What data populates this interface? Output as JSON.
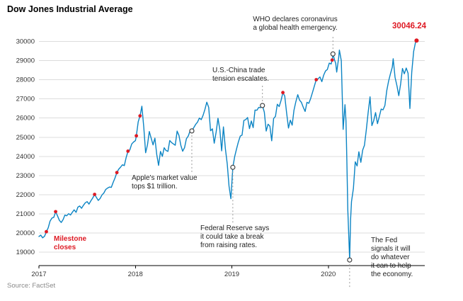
{
  "chart_data": {
    "type": "line",
    "title": "Dow Jones Industrial Average",
    "source": "Source: FactSet",
    "xlabel": "",
    "ylabel": "",
    "x_range": [
      2017,
      2021
    ],
    "y_range": [
      18300,
      30500
    ],
    "x_ticks": [
      2017,
      2018,
      2019,
      2020
    ],
    "y_ticks": [
      19000,
      20000,
      21000,
      22000,
      23000,
      24000,
      25000,
      26000,
      27000,
      28000,
      29000,
      30000
    ],
    "grid": "horizontal",
    "legend": "none",
    "line_color": "#0b84c4",
    "accent_red": "#de1a24",
    "grid_color": "#dcdcdc",
    "last_value": 30046.24,
    "series": {
      "name": "Dow Jones Industrial Average",
      "points": [
        [
          2017.0,
          19820
        ],
        [
          2017.019,
          19890
        ],
        [
          2017.038,
          19750
        ],
        [
          2017.058,
          19830
        ],
        [
          2017.077,
          20070
        ],
        [
          2017.096,
          20270
        ],
        [
          2017.115,
          20620
        ],
        [
          2017.135,
          20780
        ],
        [
          2017.154,
          20820
        ],
        [
          2017.173,
          21115
        ],
        [
          2017.192,
          20900
        ],
        [
          2017.212,
          20660
        ],
        [
          2017.231,
          20550
        ],
        [
          2017.25,
          20700
        ],
        [
          2017.269,
          20940
        ],
        [
          2017.288,
          20900
        ],
        [
          2017.308,
          21010
        ],
        [
          2017.327,
          20940
        ],
        [
          2017.346,
          21080
        ],
        [
          2017.365,
          21210
        ],
        [
          2017.385,
          21080
        ],
        [
          2017.404,
          21350
        ],
        [
          2017.423,
          21410
        ],
        [
          2017.442,
          21290
        ],
        [
          2017.462,
          21450
        ],
        [
          2017.481,
          21580
        ],
        [
          2017.5,
          21640
        ],
        [
          2017.519,
          21510
        ],
        [
          2017.538,
          21680
        ],
        [
          2017.558,
          21830
        ],
        [
          2017.577,
          22016
        ],
        [
          2017.596,
          21860
        ],
        [
          2017.615,
          21700
        ],
        [
          2017.635,
          21810
        ],
        [
          2017.654,
          21990
        ],
        [
          2017.673,
          22090
        ],
        [
          2017.692,
          22270
        ],
        [
          2017.712,
          22350
        ],
        [
          2017.731,
          22400
        ],
        [
          2017.75,
          22380
        ],
        [
          2017.769,
          22640
        ],
        [
          2017.788,
          22870
        ],
        [
          2017.808,
          23157
        ],
        [
          2017.827,
          23330
        ],
        [
          2017.846,
          23440
        ],
        [
          2017.865,
          23560
        ],
        [
          2017.885,
          23520
        ],
        [
          2017.904,
          23940
        ],
        [
          2017.923,
          24272
        ],
        [
          2017.942,
          24330
        ],
        [
          2017.962,
          24650
        ],
        [
          2017.981,
          24750
        ],
        [
          2018.0,
          24820
        ],
        [
          2018.01,
          25075
        ],
        [
          2018.029,
          25800
        ],
        [
          2018.048,
          26115
        ],
        [
          2018.067,
          26617
        ],
        [
          2018.087,
          25520
        ],
        [
          2018.106,
          24190
        ],
        [
          2018.125,
          24600
        ],
        [
          2018.144,
          25300
        ],
        [
          2018.163,
          24950
        ],
        [
          2018.183,
          24600
        ],
        [
          2018.202,
          24950
        ],
        [
          2018.221,
          24100
        ],
        [
          2018.24,
          23533
        ],
        [
          2018.26,
          24260
        ],
        [
          2018.279,
          24000
        ],
        [
          2018.298,
          24450
        ],
        [
          2018.317,
          24310
        ],
        [
          2018.337,
          24260
        ],
        [
          2018.356,
          24830
        ],
        [
          2018.375,
          24720
        ],
        [
          2018.394,
          24650
        ],
        [
          2018.413,
          24580
        ],
        [
          2018.433,
          25320
        ],
        [
          2018.452,
          25090
        ],
        [
          2018.471,
          24580
        ],
        [
          2018.49,
          24270
        ],
        [
          2018.51,
          24460
        ],
        [
          2018.529,
          24920
        ],
        [
          2018.548,
          25060
        ],
        [
          2018.567,
          25330
        ],
        [
          2018.585,
          25330
        ],
        [
          2018.606,
          25510
        ],
        [
          2018.625,
          25670
        ],
        [
          2018.644,
          25790
        ],
        [
          2018.663,
          26000
        ],
        [
          2018.683,
          25920
        ],
        [
          2018.702,
          26150
        ],
        [
          2018.721,
          26458
        ],
        [
          2018.74,
          26828
        ],
        [
          2018.76,
          26560
        ],
        [
          2018.779,
          25340
        ],
        [
          2018.798,
          25440
        ],
        [
          2018.817,
          24690
        ],
        [
          2018.837,
          25270
        ],
        [
          2018.856,
          25990
        ],
        [
          2018.875,
          25410
        ],
        [
          2018.894,
          24290
        ],
        [
          2018.913,
          25540
        ],
        [
          2018.933,
          24390
        ],
        [
          2018.952,
          23600
        ],
        [
          2018.971,
          22450
        ],
        [
          2018.99,
          21792
        ],
        [
          2019.01,
          23430
        ],
        [
          2019.029,
          23990
        ],
        [
          2019.048,
          24370
        ],
        [
          2019.067,
          24740
        ],
        [
          2019.087,
          25060
        ],
        [
          2019.106,
          25110
        ],
        [
          2019.125,
          25880
        ],
        [
          2019.144,
          25920
        ],
        [
          2019.163,
          26030
        ],
        [
          2019.183,
          25450
        ],
        [
          2019.202,
          25850
        ],
        [
          2019.221,
          25500
        ],
        [
          2019.24,
          26420
        ],
        [
          2019.26,
          26410
        ],
        [
          2019.279,
          26560
        ],
        [
          2019.298,
          26540
        ],
        [
          2019.317,
          26656
        ],
        [
          2019.337,
          26300
        ],
        [
          2019.356,
          25320
        ],
        [
          2019.375,
          25680
        ],
        [
          2019.394,
          25580
        ],
        [
          2019.413,
          24815
        ],
        [
          2019.433,
          25980
        ],
        [
          2019.452,
          26090
        ],
        [
          2019.471,
          26720
        ],
        [
          2019.49,
          26600
        ],
        [
          2019.51,
          26920
        ],
        [
          2019.529,
          27332
        ],
        [
          2019.548,
          27150
        ],
        [
          2019.567,
          26290
        ],
        [
          2019.587,
          25480
        ],
        [
          2019.606,
          25890
        ],
        [
          2019.625,
          25630
        ],
        [
          2019.644,
          26400
        ],
        [
          2019.663,
          26840
        ],
        [
          2019.683,
          27220
        ],
        [
          2019.702,
          26940
        ],
        [
          2019.721,
          26820
        ],
        [
          2019.74,
          26570
        ],
        [
          2019.76,
          26350
        ],
        [
          2019.779,
          26820
        ],
        [
          2019.798,
          26770
        ],
        [
          2019.817,
          27020
        ],
        [
          2019.837,
          27350
        ],
        [
          2019.856,
          27680
        ],
        [
          2019.875,
          28005
        ],
        [
          2019.894,
          28050
        ],
        [
          2019.913,
          28150
        ],
        [
          2019.933,
          27900
        ],
        [
          2019.952,
          28240
        ],
        [
          2019.971,
          28460
        ],
        [
          2019.99,
          28538
        ],
        [
          2020.01,
          28870
        ],
        [
          2020.029,
          28820
        ],
        [
          2020.04,
          29030
        ],
        [
          2020.048,
          29348
        ],
        [
          2020.067,
          28990
        ],
        [
          2020.077,
          28860
        ],
        [
          2020.087,
          28400
        ],
        [
          2020.106,
          29100
        ],
        [
          2020.115,
          29551
        ],
        [
          2020.135,
          28990
        ],
        [
          2020.154,
          25409
        ],
        [
          2020.173,
          26700
        ],
        [
          2020.183,
          25860
        ],
        [
          2020.192,
          23850
        ],
        [
          2020.202,
          21200
        ],
        [
          2020.212,
          19900
        ],
        [
          2020.221,
          18592
        ],
        [
          2020.231,
          20700
        ],
        [
          2020.24,
          21640
        ],
        [
          2020.26,
          22330
        ],
        [
          2020.279,
          23720
        ],
        [
          2020.298,
          23500
        ],
        [
          2020.317,
          24240
        ],
        [
          2020.337,
          23690
        ],
        [
          2020.356,
          24330
        ],
        [
          2020.375,
          24580
        ],
        [
          2020.394,
          25380
        ],
        [
          2020.413,
          26280
        ],
        [
          2020.433,
          27110
        ],
        [
          2020.452,
          25610
        ],
        [
          2020.471,
          25870
        ],
        [
          2020.49,
          26290
        ],
        [
          2020.51,
          25710
        ],
        [
          2020.529,
          26080
        ],
        [
          2020.548,
          26470
        ],
        [
          2020.567,
          26430
        ],
        [
          2020.587,
          26660
        ],
        [
          2020.606,
          27430
        ],
        [
          2020.625,
          27930
        ],
        [
          2020.644,
          28310
        ],
        [
          2020.663,
          28650
        ],
        [
          2020.673,
          29100
        ],
        [
          2020.692,
          28130
        ],
        [
          2020.712,
          27670
        ],
        [
          2020.731,
          27170
        ],
        [
          2020.75,
          27780
        ],
        [
          2020.769,
          28590
        ],
        [
          2020.788,
          28310
        ],
        [
          2020.808,
          28610
        ],
        [
          2020.827,
          28340
        ],
        [
          2020.846,
          26500
        ],
        [
          2020.865,
          28390
        ],
        [
          2020.885,
          29480
        ],
        [
          2020.904,
          29950
        ],
        [
          2020.915,
          30046
        ]
      ]
    },
    "milestone_closes": [
      [
        2017.077,
        20070
      ],
      [
        2017.173,
        21115
      ],
      [
        2017.577,
        22016
      ],
      [
        2017.808,
        23157
      ],
      [
        2017.923,
        24272
      ],
      [
        2018.01,
        25075
      ],
      [
        2018.048,
        26115
      ],
      [
        2019.529,
        27332
      ],
      [
        2019.875,
        28005
      ],
      [
        2020.04,
        29030
      ],
      [
        2020.915,
        30046
      ]
    ],
    "events": [
      {
        "id": "apple",
        "x": 2018.585,
        "y": 25330
      },
      {
        "id": "fed_break",
        "x": 2019.01,
        "y": 23430
      },
      {
        "id": "trade",
        "x": 2019.317,
        "y": 26656
      },
      {
        "id": "who",
        "x": 2020.048,
        "y": 29348
      },
      {
        "id": "fed_help",
        "x": 2020.221,
        "y": 18592
      }
    ],
    "annotations": {
      "who": {
        "text": "WHO declares coronavirus\na global health emergency."
      },
      "trade": {
        "text": "U.S.-China trade\ntension escalates."
      },
      "apple": {
        "text": "Apple's market value\ntops $1 trillion."
      },
      "fed_break": {
        "text": "Federal Reserve says\nit could take a break\nfrom raising rates."
      },
      "milestone": {
        "text": "Milestone\ncloses"
      },
      "fed_help": {
        "text": "The Fed\nsignals it will\ndo whatever\nit can to help\nthe economy."
      },
      "last_value": {
        "text": "30046.24"
      }
    }
  }
}
